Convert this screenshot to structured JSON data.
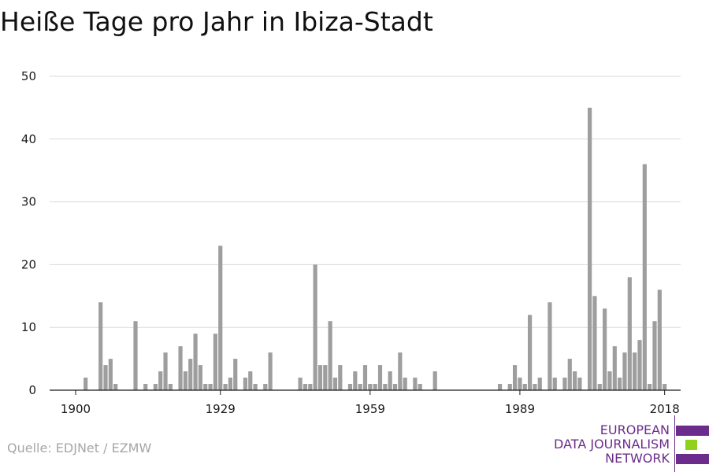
{
  "chart_data": {
    "type": "bar",
    "title": "Heiße Tage pro Jahr in Ibiza-Stadt",
    "xlabel": "",
    "ylabel": "",
    "xlim": [
      1900,
      2019
    ],
    "ylim": [
      0,
      50
    ],
    "yticks": [
      0,
      10,
      20,
      30,
      40,
      50
    ],
    "xticks": [
      1900,
      1929,
      1959,
      1989,
      2018
    ],
    "grid": true,
    "bar_color": "#9e9e9e",
    "x": [
      1902,
      1905,
      1906,
      1907,
      1908,
      1912,
      1914,
      1916,
      1917,
      1918,
      1919,
      1921,
      1922,
      1923,
      1924,
      1925,
      1926,
      1927,
      1928,
      1929,
      1930,
      1931,
      1932,
      1934,
      1935,
      1936,
      1938,
      1939,
      1945,
      1946,
      1947,
      1948,
      1949,
      1950,
      1951,
      1952,
      1953,
      1955,
      1956,
      1957,
      1958,
      1959,
      1960,
      1961,
      1962,
      1963,
      1964,
      1965,
      1966,
      1968,
      1969,
      1972,
      1985,
      1987,
      1988,
      1989,
      1990,
      1991,
      1992,
      1993,
      1995,
      1996,
      1998,
      1999,
      2000,
      2001,
      2003,
      2004,
      2005,
      2006,
      2007,
      2008,
      2009,
      2010,
      2011,
      2012,
      2013,
      2014,
      2015,
      2016,
      2017,
      2018
    ],
    "values": [
      2,
      14,
      4,
      5,
      1,
      11,
      1,
      1,
      3,
      6,
      1,
      7,
      3,
      5,
      9,
      4,
      1,
      1,
      9,
      23,
      1,
      2,
      5,
      2,
      3,
      1,
      1,
      6,
      2,
      1,
      1,
      20,
      4,
      4,
      11,
      2,
      4,
      1,
      3,
      1,
      4,
      1,
      1,
      4,
      1,
      3,
      1,
      6,
      2,
      2,
      1,
      3,
      1,
      1,
      4,
      2,
      1,
      12,
      1,
      2,
      14,
      2,
      2,
      5,
      3,
      2,
      45,
      15,
      1,
      13,
      3,
      7,
      2,
      6,
      18,
      6,
      8,
      36,
      1,
      11,
      16,
      1
    ]
  },
  "source": "Quelle: EDJNet / EZMW",
  "logo": {
    "lines": [
      "EUROPEAN",
      "DATA JOURNALISM",
      "NETWORK"
    ],
    "colors": [
      "#6b2c8c",
      "#8fd11c",
      "#6b2c8c"
    ]
  }
}
